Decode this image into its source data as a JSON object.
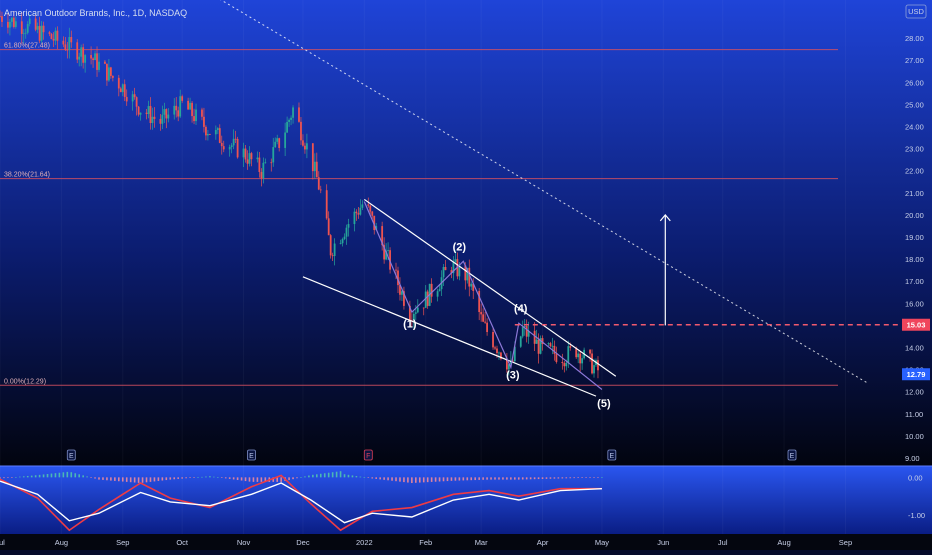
{
  "header": {
    "symbol_text": "American Outdoor Brands, Inc., 1D, NASDAQ",
    "currency": "USD"
  },
  "colors": {
    "bg_top": "#1f44d8",
    "bg_bottom": "#02040f",
    "candle_up": "#26a69a",
    "candle_down": "#ef5350",
    "fib_line": "#d85060",
    "support_dash": "#f05a6e",
    "price_badge_red": "#f0455c",
    "price_badge_blue": "#2962ff",
    "channel": "#ffffff",
    "wave_line": "#8c78d8",
    "macd_line": "#ffffff",
    "signal_line": "#ef3b45"
  },
  "price_axis": {
    "ticks": [
      "28.00",
      "27.00",
      "26.00",
      "25.00",
      "24.00",
      "23.00",
      "22.00",
      "21.00",
      "20.00",
      "19.00",
      "18.00",
      "17.00",
      "16.00",
      "15.00",
      "14.00",
      "13.00",
      "12.00",
      "11.00",
      "10.00",
      "9.00"
    ]
  },
  "indicator_axis": {
    "ticks": [
      "0.00",
      "-1.00"
    ]
  },
  "time_axis": {
    "ticks": [
      "Jul",
      "Aug",
      "Sep",
      "Oct",
      "Nov",
      "Dec",
      "2022",
      "Feb",
      "Mar",
      "Apr",
      "May",
      "Jun",
      "Jul",
      "Aug",
      "Sep"
    ]
  },
  "fib_levels": [
    {
      "label": "61.80%(27.48)",
      "value": 27.48
    },
    {
      "label": "38.20%(21.64)",
      "value": 21.64
    },
    {
      "label": "0.00%(12.29)",
      "value": 12.29
    }
  ],
  "badges": [
    {
      "text": "15.03",
      "value": 15.03,
      "kind": "red"
    },
    {
      "text": "12.79",
      "value": 12.79,
      "kind": "blue"
    }
  ],
  "wave_labels": [
    "(1)",
    "(2)",
    "(3)",
    "(4)",
    "(5)"
  ],
  "event_markers": [
    "E",
    "E",
    "F",
    "E",
    "E"
  ],
  "chart_data": {
    "type": "candlestick",
    "ylim": [
      9,
      29
    ],
    "x_range": [
      "2021-07-01",
      "2022-09-25"
    ],
    "candles_note": "daily closes approximated from the chart",
    "close_path": [
      [
        "2021-07-01",
        29.0
      ],
      [
        "2021-07-20",
        28.3
      ],
      [
        "2021-08-01",
        27.8
      ],
      [
        "2021-08-15",
        27.2
      ],
      [
        "2021-09-01",
        25.8
      ],
      [
        "2021-09-10",
        24.8
      ],
      [
        "2021-09-20",
        24.2
      ],
      [
        "2021-10-01",
        25.0
      ],
      [
        "2021-10-15",
        23.8
      ],
      [
        "2021-11-01",
        22.8
      ],
      [
        "2021-11-10",
        22.0
      ],
      [
        "2021-11-20",
        23.4
      ],
      [
        "2021-11-26",
        24.8
      ],
      [
        "2021-12-05",
        22.6
      ],
      [
        "2021-12-10",
        21.0
      ],
      [
        "2021-12-15",
        18.4
      ],
      [
        "2021-12-23",
        19.5
      ],
      [
        "2022-01-01",
        20.6
      ],
      [
        "2022-01-12",
        18.2
      ],
      [
        "2022-01-24",
        15.6
      ],
      [
        "2022-02-01",
        16.2
      ],
      [
        "2022-02-14",
        17.7
      ],
      [
        "2022-02-22",
        17.2
      ],
      [
        "2022-03-02",
        15.0
      ],
      [
        "2022-03-16",
        13.1
      ],
      [
        "2022-03-22",
        14.8
      ],
      [
        "2022-04-01",
        13.9
      ],
      [
        "2022-04-12",
        13.6
      ],
      [
        "2022-04-18",
        13.9
      ],
      [
        "2022-05-01",
        12.79
      ]
    ],
    "annotations": {
      "wedge_upper": [
        [
          "2022-01-01",
          20.7
        ],
        [
          "2022-05-08",
          12.7
        ]
      ],
      "wedge_lower": [
        [
          "2021-12-01",
          17.2
        ],
        [
          "2022-04-28",
          11.8
        ]
      ],
      "wave_path": [
        [
          "2022-01-01",
          20.6
        ],
        [
          "2022-01-25",
          15.6
        ],
        [
          "2022-02-20",
          17.9
        ],
        [
          "2022-03-16",
          13.1
        ],
        [
          "2022-03-20",
          15.1
        ],
        [
          "2022-05-01",
          12.1
        ]
      ],
      "wave_points": [
        [
          "2022-01-24",
          14.9
        ],
        [
          "2022-02-18",
          18.4
        ],
        [
          "2022-03-17",
          12.6
        ],
        [
          "2022-03-21",
          15.6
        ],
        [
          "2022-05-02",
          11.3
        ]
      ],
      "long_trendline": [
        [
          "2021-08-20",
          33.0
        ],
        [
          "2022-09-12",
          12.4
        ]
      ],
      "target_arrow": [
        [
          "2022-06-02",
          15.0
        ],
        [
          "2022-06-02",
          20.0
        ]
      ],
      "support_dash": {
        "from": "2022-03-18",
        "value": 15.03
      }
    },
    "macd": {
      "ylim": [
        -1.5,
        0.3
      ],
      "macd_line": [
        [
          "2021-07-01",
          -0.1
        ],
        [
          "2021-07-20",
          -0.45
        ],
        [
          "2021-08-05",
          -1.15
        ],
        [
          "2021-08-20",
          -0.95
        ],
        [
          "2021-09-10",
          -0.4
        ],
        [
          "2021-09-25",
          -0.65
        ],
        [
          "2021-10-15",
          -0.75
        ],
        [
          "2021-11-05",
          -0.45
        ],
        [
          "2021-11-20",
          -0.15
        ],
        [
          "2021-12-05",
          -0.6
        ],
        [
          "2021-12-22",
          -1.2
        ],
        [
          "2022-01-05",
          -0.95
        ],
        [
          "2022-01-25",
          -1.05
        ],
        [
          "2022-02-15",
          -0.6
        ],
        [
          "2022-03-05",
          -0.45
        ],
        [
          "2022-03-20",
          -0.6
        ],
        [
          "2022-04-10",
          -0.35
        ],
        [
          "2022-05-01",
          -0.3
        ]
      ],
      "signal_line": [
        [
          "2021-07-01",
          -0.05
        ],
        [
          "2021-07-20",
          -0.55
        ],
        [
          "2021-08-05",
          -1.4
        ],
        [
          "2021-08-20",
          -0.85
        ],
        [
          "2021-09-10",
          -0.15
        ],
        [
          "2021-09-25",
          -0.55
        ],
        [
          "2021-10-15",
          -0.8
        ],
        [
          "2021-11-05",
          -0.25
        ],
        [
          "2021-11-20",
          0.05
        ],
        [
          "2021-12-05",
          -0.7
        ],
        [
          "2021-12-20",
          -1.4
        ],
        [
          "2022-01-05",
          -0.9
        ],
        [
          "2022-01-25",
          -0.8
        ],
        [
          "2022-02-15",
          -0.45
        ],
        [
          "2022-03-05",
          -0.35
        ],
        [
          "2022-03-20",
          -0.5
        ],
        [
          "2022-04-10",
          -0.3
        ],
        [
          "2022-05-01",
          -0.3
        ]
      ]
    }
  }
}
